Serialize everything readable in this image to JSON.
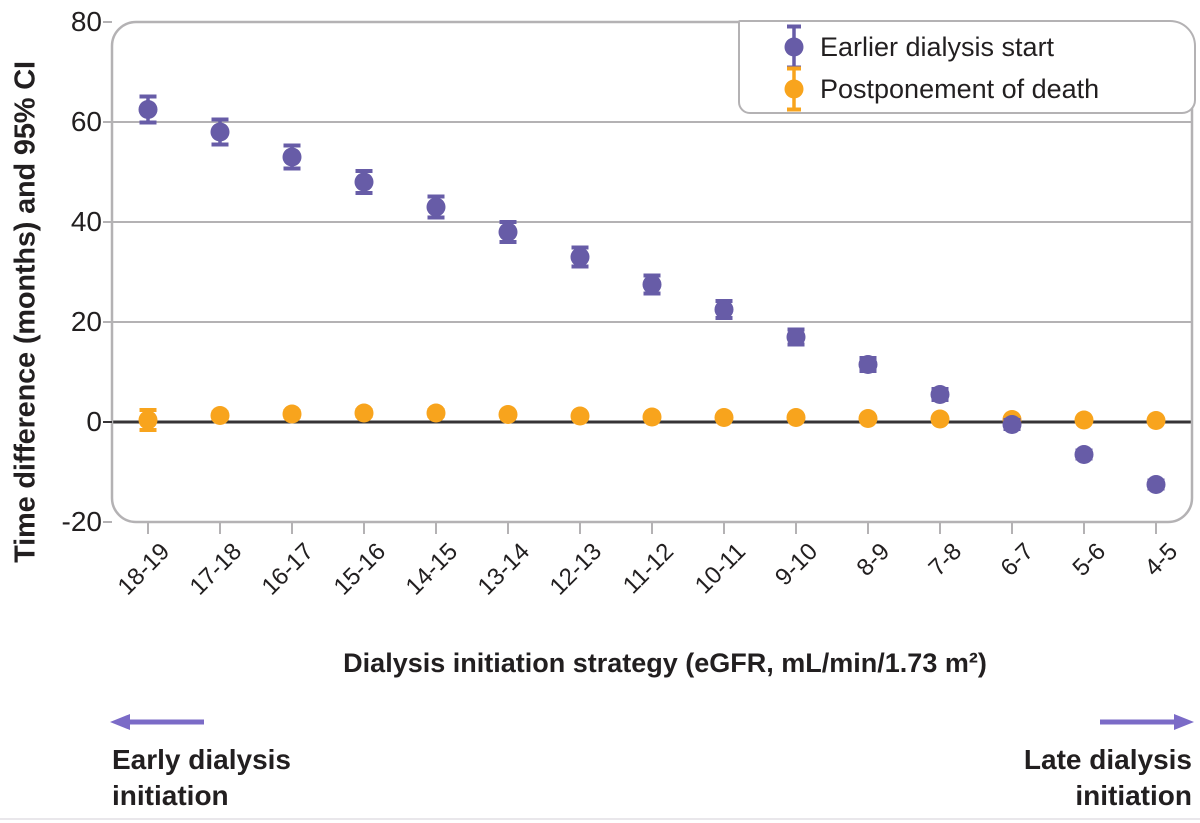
{
  "figure": {
    "ylabel": "Time difference (months) and 95% CI",
    "xlabel": "Dialysis initiation strategy (eGFR, mL/min/1.73 m²)",
    "annotation_left_line1": "Early dialysis",
    "annotation_left_line2": "initiation",
    "annotation_right_line1": "Late dialysis",
    "annotation_right_line2": "initiation"
  },
  "legend": {
    "items": [
      {
        "label": "Earlier dialysis start",
        "color": "#675CA7"
      },
      {
        "label": "Postponement of death",
        "color": "#F8A41D"
      }
    ]
  },
  "colors": {
    "purple_series": "#675CA7",
    "orange_series": "#F8A41D",
    "arrow_purple": "#7B6BC7",
    "grid_gray": "#b4b2b4",
    "frame_gray": "#b4b2b4",
    "zero_line": "#363436",
    "text": "#221f20"
  },
  "chart_data": {
    "type": "scatter",
    "title": "",
    "xlabel": "Dialysis initiation strategy (eGFR, mL/min/1.73 m²)",
    "ylabel": "Time difference (months) and 95% CI",
    "categories": [
      "18-19",
      "17-18",
      "16-17",
      "15-16",
      "14-15",
      "13-14",
      "12-13",
      "11-12",
      "10-11",
      "9-10",
      "8-9",
      "7-8",
      "6-7",
      "5-6",
      "4-5"
    ],
    "series": [
      {
        "name": "Earlier dialysis start",
        "color": "#675CA7",
        "values": [
          62.5,
          58.0,
          53.0,
          48.0,
          43.0,
          38.0,
          33.0,
          27.5,
          22.5,
          17.0,
          11.5,
          5.5,
          -0.5,
          -6.5,
          -12.5
        ],
        "ci_halfwidth": [
          2.6,
          2.5,
          2.3,
          2.2,
          2.1,
          2.0,
          1.9,
          1.8,
          1.7,
          1.5,
          1.3,
          1.1,
          0.9,
          0.8,
          0.8
        ]
      },
      {
        "name": "Postponement of death",
        "color": "#F8A41D",
        "values": [
          0.4,
          1.3,
          1.6,
          1.8,
          1.8,
          1.5,
          1.2,
          1.0,
          0.9,
          0.9,
          0.7,
          0.6,
          0.5,
          0.4,
          0.3
        ],
        "ci_halfwidth": [
          2.0,
          0.6,
          0.6,
          0.6,
          0.6,
          0.5,
          0.5,
          0.4,
          0.4,
          0.4,
          0.3,
          0.3,
          0.3,
          0.3,
          0.3
        ]
      }
    ],
    "yticks": [
      80,
      60,
      40,
      20,
      0,
      -20
    ],
    "ylim": [
      -20,
      80
    ],
    "grid": true,
    "zero_line": true,
    "legend_position": "top-right",
    "x_tick_rotation_deg": 45,
    "annotations": {
      "left_arrow_direction": "left",
      "left_text": "Early dialysis initiation",
      "right_arrow_direction": "right",
      "right_text": "Late dialysis initiation"
    }
  }
}
